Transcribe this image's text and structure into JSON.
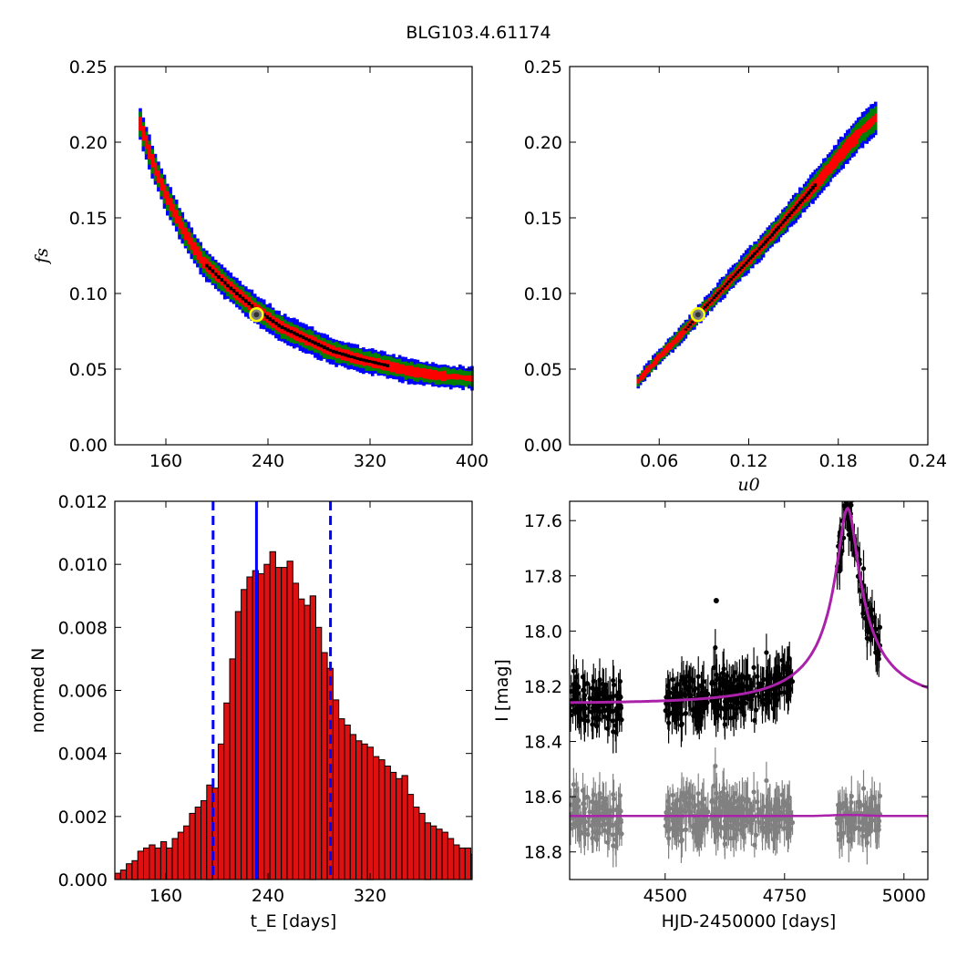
{
  "figure": {
    "title": "BLG103.4.61174"
  },
  "colors": {
    "level_1sigma_core": "#000000",
    "level_1sigma": "#ff0000",
    "level_2sigma": "#008000",
    "level_3sigma": "#0000ff",
    "best_fit_marker_face": "#808080",
    "best_fit_marker_edge": "#ffff00",
    "hist_bar": "#dd1111",
    "hist_lines": "#0000ff",
    "model_line": "#aa22aa",
    "data_points": "#000000",
    "residual_points": "#808080"
  },
  "chart_data": [
    {
      "id": "fs_vs_tE",
      "type": "heatmap",
      "title": "",
      "xlabel": "",
      "ylabel": "f_s",
      "xlim": [
        120,
        400
      ],
      "ylim": [
        0.0,
        0.25
      ],
      "xticks": [
        160,
        240,
        320,
        400
      ],
      "yticks": [
        0.0,
        0.05,
        0.1,
        0.15,
        0.2,
        0.25
      ],
      "description_of_relation": "f_s = A * tE^-p, banana-shaped confidence region",
      "curve_points": [
        [
          140,
          0.212
        ],
        [
          150,
          0.186
        ],
        [
          160,
          0.165
        ],
        [
          175,
          0.14
        ],
        [
          190,
          0.12
        ],
        [
          210,
          0.104
        ],
        [
          230,
          0.09
        ],
        [
          250,
          0.078
        ],
        [
          270,
          0.07
        ],
        [
          290,
          0.062
        ],
        [
          310,
          0.057
        ],
        [
          330,
          0.053
        ],
        [
          350,
          0.049
        ],
        [
          370,
          0.046
        ],
        [
          400,
          0.044
        ]
      ],
      "best_fit": {
        "x": 231,
        "y": 0.086
      }
    },
    {
      "id": "fs_vs_u0",
      "type": "heatmap",
      "title": "",
      "xlabel": "u_0",
      "ylabel": "",
      "xlim": [
        0.0,
        0.24
      ],
      "ylim": [
        0.0,
        0.25
      ],
      "xticks": [
        0.06,
        0.12,
        0.18,
        0.24
      ],
      "yticks": [
        0.0,
        0.05,
        0.1,
        0.15,
        0.2,
        0.25
      ],
      "curve_points": [
        [
          0.046,
          0.042
        ],
        [
          0.06,
          0.058
        ],
        [
          0.075,
          0.073
        ],
        [
          0.09,
          0.09
        ],
        [
          0.105,
          0.106
        ],
        [
          0.12,
          0.122
        ],
        [
          0.135,
          0.138
        ],
        [
          0.15,
          0.155
        ],
        [
          0.165,
          0.172
        ],
        [
          0.18,
          0.19
        ],
        [
          0.195,
          0.207
        ],
        [
          0.205,
          0.216
        ]
      ],
      "best_fit": {
        "x": 0.086,
        "y": 0.086
      }
    },
    {
      "id": "tE_histogram",
      "type": "bar",
      "title": "",
      "xlabel": "t_E [days]",
      "ylabel": "normed N",
      "xlim": [
        120,
        400
      ],
      "ylim": [
        0.0,
        0.012
      ],
      "xticks": [
        160,
        240,
        320
      ],
      "yticks": [
        0.0,
        0.002,
        0.004,
        0.006,
        0.008,
        0.01,
        0.012
      ],
      "bin_width": 4.5,
      "bin_start": 120,
      "values": [
        0.0002,
        0.0003,
        0.0005,
        0.0006,
        0.0009,
        0.001,
        0.0011,
        0.001,
        0.0012,
        0.001,
        0.0013,
        0.0015,
        0.0017,
        0.0021,
        0.0023,
        0.0025,
        0.003,
        0.0029,
        0.0043,
        0.0056,
        0.007,
        0.0085,
        0.0092,
        0.0096,
        0.0098,
        0.0097,
        0.01,
        0.0104,
        0.0099,
        0.0099,
        0.0101,
        0.0094,
        0.0089,
        0.0087,
        0.009,
        0.008,
        0.0072,
        0.0067,
        0.0057,
        0.0051,
        0.0049,
        0.0046,
        0.0044,
        0.0043,
        0.0042,
        0.0039,
        0.0038,
        0.0036,
        0.0034,
        0.0032,
        0.0033,
        0.0027,
        0.0023,
        0.0021,
        0.0018,
        0.0017,
        0.0016,
        0.0015,
        0.0013,
        0.0011,
        0.001,
        0.001,
        0.0008,
        0.0008,
        0.0007,
        0.0007,
        0.0006,
        0.0006,
        0.0006,
        0.0005,
        0.0005,
        0.0005,
        0.0004,
        0.0004,
        0.0004,
        0.0004,
        0.0004,
        0.0004,
        0.0004,
        0.0005,
        0.0004,
        0.0004
      ],
      "median_line": 231,
      "dashed_lines": [
        197,
        289
      ]
    },
    {
      "id": "light_curve",
      "type": "scatter",
      "title": "",
      "xlabel": "HJD-2450000 [days]",
      "ylabel": "I [mag]",
      "xlim": [
        4300,
        5050
      ],
      "ylim": [
        18.9,
        17.53
      ],
      "y_inverted": true,
      "xticks": [
        4500,
        4750,
        5000
      ],
      "yticks": [
        17.6,
        17.8,
        18.0,
        18.2,
        18.4,
        18.6,
        18.8
      ],
      "model": {
        "baseline": 18.262,
        "t0": 4882,
        "tE": 231,
        "u0": 0.086,
        "fs": 0.086
      },
      "data_segments": [
        [
          4300,
          4410
        ],
        [
          4500,
          4770
        ],
        [
          4860,
          4950
        ]
      ],
      "residual_offset": 18.67,
      "outlier_point": [
        4607,
        17.89
      ]
    }
  ]
}
